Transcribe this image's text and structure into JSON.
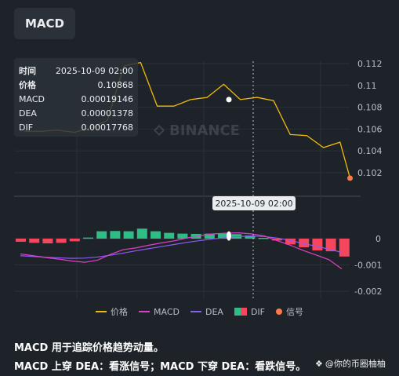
{
  "tab": {
    "label": "MACD"
  },
  "watermark": "BINANCE",
  "tooltip": {
    "rows": [
      {
        "key": "时间",
        "value": "2025-10-09 02:00"
      },
      {
        "key": "价格",
        "value": "0.10868"
      },
      {
        "key": "MACD",
        "value": "0.00019146"
      },
      {
        "key": "DEA",
        "value": "0.00001378"
      },
      {
        "key": "DIF",
        "value": "0.00017768"
      }
    ]
  },
  "crosshair_time": "2025-10-09 02:00",
  "legend": [
    {
      "label": "价格",
      "color": "#f0b90b",
      "shape": "line"
    },
    {
      "label": "MACD",
      "color": "#e040c8",
      "shape": "line"
    },
    {
      "label": "DEA",
      "color": "#8b5cf6",
      "shape": "line"
    },
    {
      "label": "DIF",
      "color": "#2ebd85",
      "color2": "#f6465d",
      "shape": "squares"
    },
    {
      "label": "信号",
      "color": "#ff7a45",
      "shape": "dot"
    }
  ],
  "description": {
    "line1": "MACD 用于追踪价格趋势动量。",
    "line2": "MACD 上穿 DEA：看涨信号；MACD 下穿 DEA：看跌信号。"
  },
  "credit": "@你的币圈柚柚",
  "colors": {
    "background": "#1e2329",
    "price": "#f0b90b",
    "up": "#2ebd85",
    "down": "#f6465d",
    "macd": "#e040c8",
    "dea": "#8b5cf6"
  },
  "chart_data": [
    {
      "type": "line",
      "name": "price",
      "y_ticks": [
        "0.112",
        "0.11",
        "0.108",
        "0.106",
        "0.104",
        "0.102"
      ],
      "ylim": [
        0.1005,
        0.1125
      ],
      "x": [
        0,
        1,
        2,
        3,
        4,
        5,
        6,
        7,
        8,
        9,
        10,
        11,
        12,
        13,
        14,
        15,
        16,
        17,
        18,
        19
      ],
      "values": [
        0.1058,
        0.1058,
        0.1059,
        0.1057,
        0.1061,
        0.1068,
        0.1118,
        0.1121,
        0.1081,
        0.1081,
        0.1087,
        0.1089,
        0.1101,
        0.1087,
        0.1089,
        0.1086,
        0.1055,
        0.1054,
        0.1043,
        0.1048
      ],
      "signal_point": {
        "x": 19.6,
        "y": 0.1015
      },
      "highlight_index": 13
    },
    {
      "type": "bar",
      "name": "MACD histogram",
      "y_ticks": [
        "0",
        "-0.001",
        "-0.002"
      ],
      "ylim": [
        -0.002,
        0.0006
      ],
      "histogram": [
        -0.00012,
        -0.00016,
        -0.00018,
        -0.00016,
        -0.0001,
        4e-05,
        0.00028,
        0.00029,
        0.00028,
        0.00038,
        0.00028,
        0.00022,
        0.00019,
        0.00018,
        0.00019,
        0.00019,
        0.00017,
        0.00012,
        3e-05,
        -7e-05,
        -0.00022,
        -0.00033,
        -0.00045,
        -0.00048,
        -0.00068
      ],
      "macd_line": [
        -0.00058,
        -0.00065,
        -0.00072,
        -0.00078,
        -0.00085,
        -0.0009,
        -0.00082,
        -0.0006,
        -0.00042,
        -0.00035,
        -0.00025,
        -0.00016,
        -8e-05,
        3e-05,
        0.00012,
        0.00018,
        0.00021,
        0.00022,
        0.00018,
        0.0001,
        -8e-05,
        -0.00025,
        -0.00045,
        -0.00062,
        -0.0008,
        -0.00115
      ],
      "dea_line": [
        -0.00065,
        -0.00068,
        -0.00071,
        -0.00073,
        -0.00075,
        -0.00074,
        -0.0007,
        -0.00063,
        -0.00055,
        -0.00046,
        -0.00038,
        -0.0003,
        -0.00022,
        -0.00014,
        -7e-05,
        -1e-05,
        4e-05,
        8e-05,
        0.0001,
        8e-05,
        2e-05,
        -7e-05,
        -0.00018,
        -0.00029,
        -0.0004,
        -0.00052
      ]
    }
  ]
}
